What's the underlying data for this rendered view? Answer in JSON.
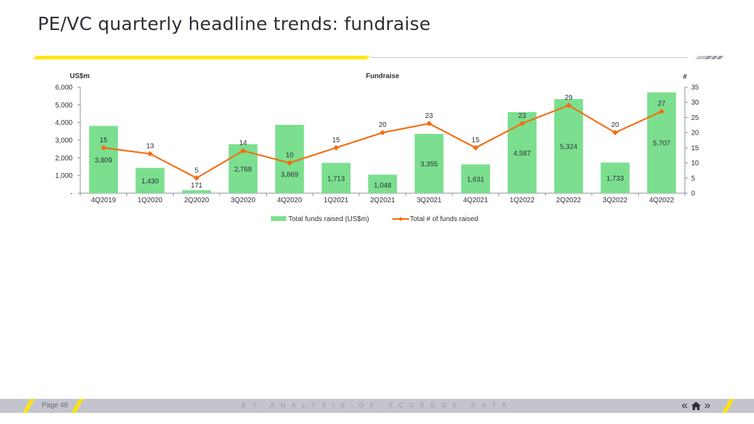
{
  "slide": {
    "title": "PE/VC quarterly headline trends: fundraise"
  },
  "footer": {
    "page_label": "Page 46",
    "tagline": "EY ANALYSIS OF VCCEDGE DATA",
    "nav": {
      "back_label": "«",
      "forward_label": "»"
    }
  },
  "colors": {
    "bar": "#7bdf8f",
    "line": "#f46c12",
    "text": "#2e2e38",
    "accent": "#ffe600"
  },
  "chart_data": {
    "type": "bar",
    "title": "Fundraise",
    "categories": [
      "4Q2019",
      "1Q2020",
      "2Q2020",
      "3Q2020",
      "4Q2020",
      "1Q2021",
      "2Q2021",
      "3Q2021",
      "4Q2021",
      "1Q2022",
      "2Q2022",
      "3Q2022",
      "4Q2022"
    ],
    "y_left_unit": "US$m",
    "y_right_unit": "#",
    "y_left_ticks": [
      "-",
      "1,000",
      "2,000",
      "3,000",
      "4,000",
      "5,000",
      "6,000"
    ],
    "y_right_ticks": [
      "0",
      "5",
      "10",
      "15",
      "20",
      "25",
      "30",
      "35"
    ],
    "ylim_left": [
      0,
      6000
    ],
    "ylim_right": [
      0,
      35
    ],
    "grid": false,
    "legend_position": "bottom",
    "series": [
      {
        "name": "Total funds raised (US$m)",
        "type": "bar",
        "axis": "left",
        "values": [
          3809,
          1430,
          171,
          2768,
          3869,
          1713,
          1048,
          3355,
          1631,
          4587,
          5324,
          1733,
          5707
        ],
        "labels": [
          "3,809",
          "1,430",
          "171",
          "2,768",
          "3,869",
          "1,713",
          "1,048",
          "3,355",
          "1,631",
          "4,587",
          "5,324",
          "1,733",
          "5,707"
        ]
      },
      {
        "name": "Total # of funds raised",
        "type": "line",
        "axis": "right",
        "values": [
          15,
          13,
          5,
          14,
          10,
          15,
          20,
          23,
          15,
          23,
          29,
          20,
          27
        ],
        "labels": [
          "15",
          "13",
          "5",
          "14",
          "10",
          "15",
          "20",
          "23",
          "15",
          "23",
          "29",
          "20",
          "27"
        ]
      }
    ]
  }
}
